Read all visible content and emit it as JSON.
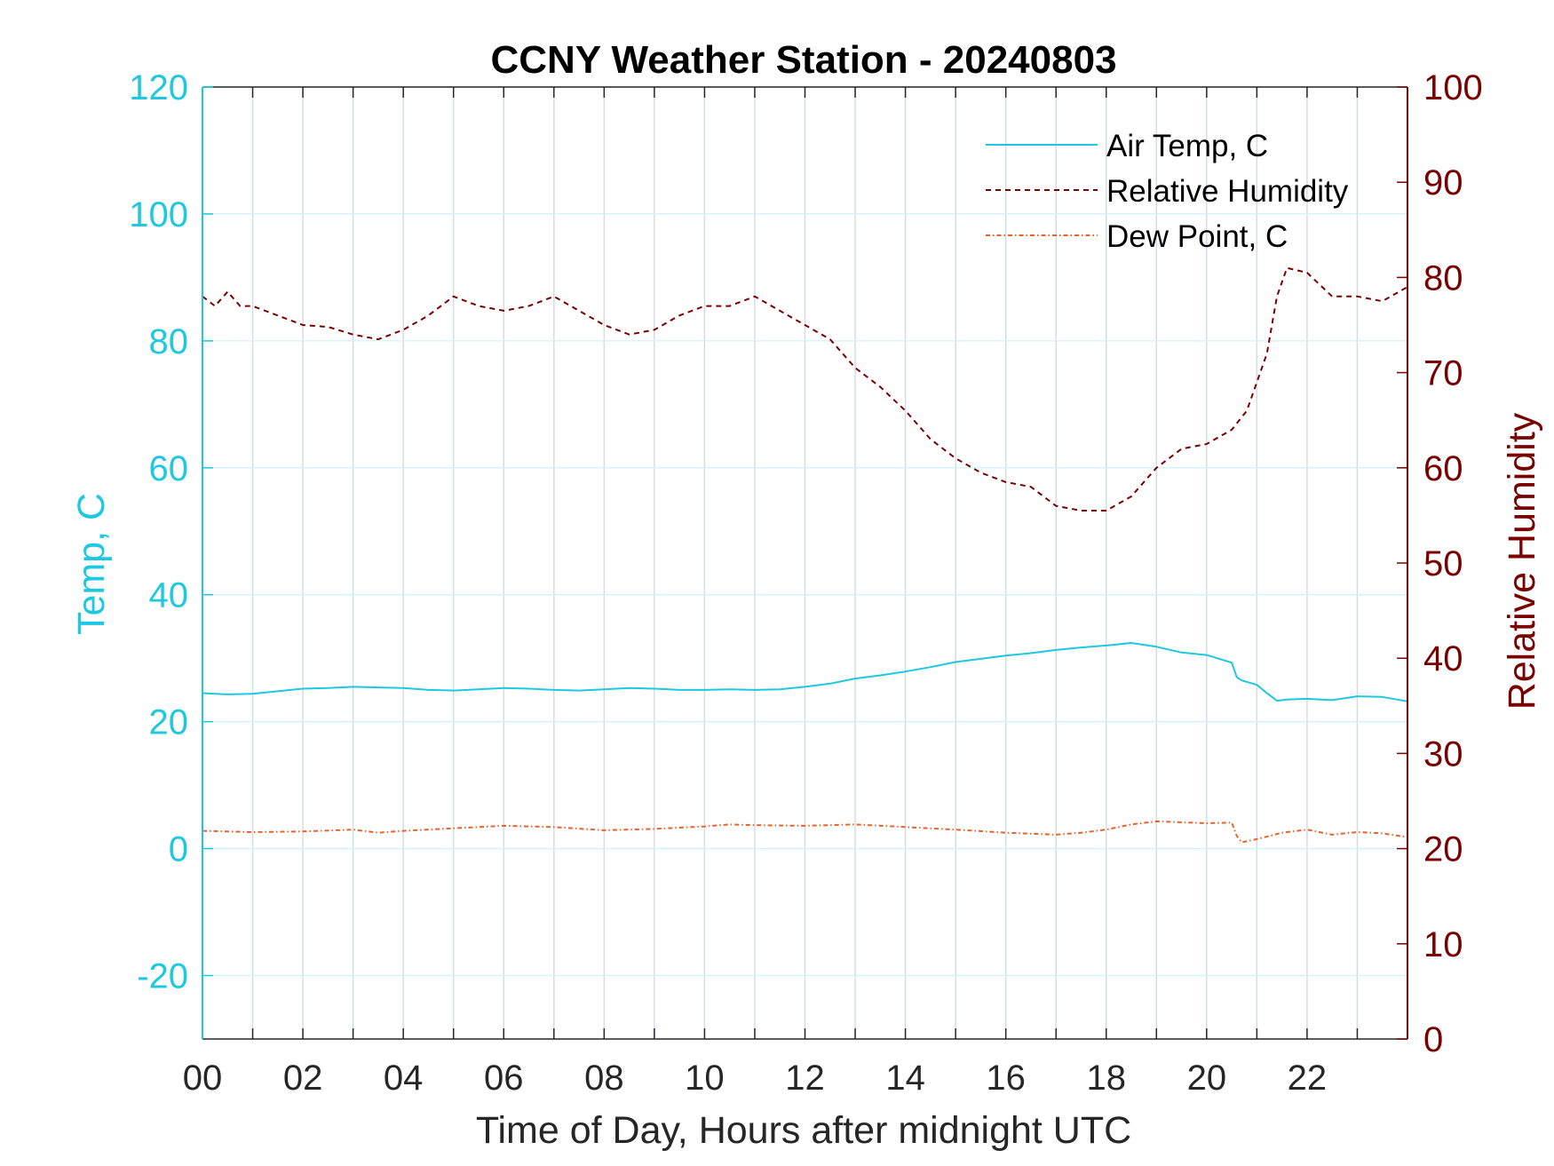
{
  "chart_data": {
    "type": "line",
    "title": "CCNY Weather Station - 20240803",
    "xlabel": "Time of Day, Hours after midnight UTC",
    "ylabel_left": "Temp, C",
    "ylabel_right": "Relative Humidity",
    "xlim": [
      0,
      24
    ],
    "ylim_left": [
      -30,
      120
    ],
    "ylim_right": [
      0,
      100
    ],
    "x_ticks": [
      "00",
      "02",
      "04",
      "06",
      "08",
      "10",
      "12",
      "14",
      "16",
      "18",
      "20",
      "22"
    ],
    "y_ticks_left": [
      "-20",
      "0",
      "20",
      "40",
      "60",
      "80",
      "100",
      "120"
    ],
    "y_ticks_right": [
      "0",
      "10",
      "20",
      "30",
      "40",
      "50",
      "60",
      "70",
      "80",
      "90",
      "100"
    ],
    "grid": "on",
    "legend_position": "top-right",
    "colors": {
      "left_axis": "#1ec8e0",
      "right_axis": "#7a0000",
      "air_temp": "#1ec8e0",
      "humidity": "#7a0000",
      "dew_point": "#e8622a",
      "grid": "#d5dde3"
    },
    "series": [
      {
        "name": "Air Temp, C",
        "axis": "left",
        "style": "solid",
        "x": [
          0,
          0.5,
          1,
          1.5,
          2,
          2.5,
          3,
          3.5,
          4,
          4.5,
          5,
          5.5,
          6,
          6.5,
          7,
          7.5,
          8,
          8.5,
          9,
          9.5,
          10,
          10.5,
          11,
          11.5,
          12,
          12.5,
          13,
          13.5,
          14,
          14.5,
          15,
          15.5,
          16,
          16.5,
          17,
          17.5,
          18,
          18.5,
          19,
          19.5,
          20,
          20.5,
          20.6,
          20.7,
          21,
          21.2,
          21.4,
          21.6,
          22,
          22.5,
          23,
          23.5,
          24
        ],
        "y": [
          24.5,
          24.3,
          24.4,
          24.8,
          25.2,
          25.3,
          25.5,
          25.4,
          25.3,
          25.0,
          24.9,
          25.1,
          25.3,
          25.2,
          25.0,
          24.9,
          25.1,
          25.3,
          25.2,
          25.0,
          25.0,
          25.1,
          25.0,
          25.1,
          25.5,
          26.0,
          26.8,
          27.3,
          27.9,
          28.6,
          29.4,
          29.9,
          30.4,
          30.8,
          31.3,
          31.7,
          32.0,
          32.4,
          31.8,
          30.9,
          30.5,
          29.3,
          27.0,
          26.5,
          25.8,
          24.5,
          23.3,
          23.5,
          23.6,
          23.4,
          24.0,
          23.9,
          23.2
        ]
      },
      {
        "name": "Relative Humidity",
        "axis": "right",
        "style": "dashed",
        "x": [
          0,
          0.25,
          0.5,
          0.75,
          1,
          1.5,
          2,
          2.5,
          3,
          3.5,
          4,
          4.5,
          5,
          5.5,
          6,
          6.5,
          7,
          7.5,
          8,
          8.5,
          9,
          9.5,
          10,
          10.5,
          11,
          11.5,
          12,
          12.5,
          13,
          13.5,
          14,
          14.5,
          15,
          15.5,
          16,
          16.5,
          17,
          17.5,
          18,
          18.5,
          19,
          19.5,
          20,
          20.5,
          20.8,
          21,
          21.2,
          21.4,
          21.6,
          22,
          22.5,
          23,
          23.5,
          24
        ],
        "y": [
          78,
          77,
          78.5,
          77,
          77,
          76,
          75,
          74.8,
          74,
          73.5,
          74.5,
          76,
          78,
          77,
          76.5,
          77,
          78,
          76.5,
          75,
          74,
          74.5,
          76,
          77,
          77,
          78,
          76.5,
          75,
          73.5,
          70.5,
          68.5,
          66,
          63,
          61,
          59.5,
          58.5,
          58,
          56,
          55.5,
          55.5,
          57,
          60,
          62,
          62.5,
          64,
          66,
          69,
          72,
          78,
          81,
          80.5,
          78,
          78,
          77.5,
          79
        ]
      },
      {
        "name": "Dew Point, C",
        "axis": "left",
        "style": "dash-dot",
        "x": [
          0,
          1,
          2,
          3,
          3.5,
          4,
          5,
          6,
          7,
          8,
          9,
          10,
          10.5,
          11,
          12,
          13,
          14,
          15,
          16,
          17,
          17.5,
          18,
          18.5,
          19,
          20,
          20.5,
          20.6,
          20.7,
          21,
          21.5,
          22,
          22.5,
          23,
          23.5,
          24
        ],
        "y": [
          2.8,
          2.6,
          2.7,
          3.0,
          2.5,
          2.8,
          3.2,
          3.6,
          3.4,
          2.9,
          3.1,
          3.5,
          3.8,
          3.7,
          3.6,
          3.8,
          3.4,
          3.0,
          2.5,
          2.2,
          2.5,
          3.0,
          3.8,
          4.3,
          4.0,
          4.1,
          2.0,
          1.0,
          1.5,
          2.5,
          3.0,
          2.2,
          2.6,
          2.4,
          1.8
        ]
      }
    ]
  }
}
